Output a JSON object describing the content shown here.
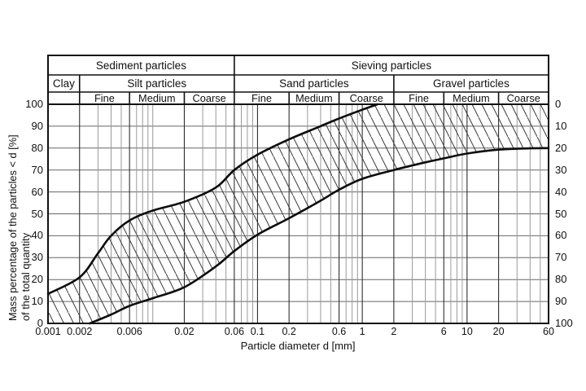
{
  "header": {
    "row1": [
      {
        "label": "Sediment particles",
        "from": 0.001,
        "to": 0.06
      },
      {
        "label": "Sieving particles",
        "from": 0.06,
        "to": 60
      }
    ],
    "row2": [
      {
        "label": "Clay",
        "from": 0.001,
        "to": 0.002
      },
      {
        "label": "Silt particles",
        "from": 0.002,
        "to": 0.06
      },
      {
        "label": "Sand particles",
        "from": 0.06,
        "to": 2
      },
      {
        "label": "Gravel particles",
        "from": 2,
        "to": 60
      }
    ],
    "row3": [
      {
        "label": "",
        "from": 0.001,
        "to": 0.002
      },
      {
        "label": "Fine",
        "from": 0.002,
        "to": 0.006
      },
      {
        "label": "Medium",
        "from": 0.006,
        "to": 0.02
      },
      {
        "label": "Coarse",
        "from": 0.02,
        "to": 0.06
      },
      {
        "label": "Fine",
        "from": 0.06,
        "to": 0.2
      },
      {
        "label": "Medium",
        "from": 0.2,
        "to": 0.6
      },
      {
        "label": "Coarse",
        "from": 0.6,
        "to": 2
      },
      {
        "label": "Fine",
        "from": 2,
        "to": 6
      },
      {
        "label": "Medium",
        "from": 6,
        "to": 20
      },
      {
        "label": "Coarse",
        "from": 20,
        "to": 60
      }
    ]
  },
  "axes": {
    "x": {
      "scale": "log",
      "min": 0.001,
      "max": 60,
      "title": "Particle diameter d [mm]",
      "ticks": [
        {
          "value": 0.001,
          "label": "0.001"
        },
        {
          "value": 0.002,
          "label": "0.002"
        },
        {
          "value": 0.006,
          "label": "0.006"
        },
        {
          "value": 0.02,
          "label": "0.02"
        },
        {
          "value": 0.06,
          "label": "0.06"
        },
        {
          "value": 0.1,
          "label": "0.1"
        },
        {
          "value": 0.2,
          "label": "0.2"
        },
        {
          "value": 0.6,
          "label": "0.6"
        },
        {
          "value": 1,
          "label": "1"
        },
        {
          "value": 2,
          "label": "2"
        },
        {
          "value": 6,
          "label": "6"
        },
        {
          "value": 10,
          "label": "10"
        },
        {
          "value": 20,
          "label": "20"
        },
        {
          "value": 60,
          "label": "60"
        }
      ]
    },
    "y_left": {
      "min": 0,
      "max": 100,
      "step": 10,
      "title_line1": "Mass percentage of the particles < d [%]",
      "title_line2": "of the total quantity",
      "labels": [
        "100",
        "90",
        "80",
        "70",
        "60",
        "50",
        "40",
        "30",
        "20",
        "10",
        "0"
      ]
    },
    "y_right": {
      "direction": "down",
      "labels": [
        "0",
        "10",
        "20",
        "30",
        "40",
        "50",
        "60",
        "70",
        "80",
        "90",
        "100"
      ]
    }
  },
  "chart_data": {
    "type": "area",
    "title": "",
    "xlabel": "Particle diameter d [mm]",
    "ylabel": "Mass percentage of the particles < d [%] of the total quantity",
    "x_scale": "log",
    "xlim_mm": [
      0.001,
      60
    ],
    "ylim_percent": [
      0,
      100
    ],
    "band_fill": "diagonal-hatch",
    "grid": "on",
    "series": [
      {
        "name": "upper envelope (finest grading curve)",
        "points_d_mm_vs_percent": [
          [
            0.001,
            13.5
          ],
          [
            0.002,
            21
          ],
          [
            0.003,
            32
          ],
          [
            0.004,
            40
          ],
          [
            0.006,
            47
          ],
          [
            0.01,
            51.5
          ],
          [
            0.02,
            55.5
          ],
          [
            0.04,
            62
          ],
          [
            0.06,
            70
          ],
          [
            0.1,
            77
          ],
          [
            0.2,
            84
          ],
          [
            0.4,
            90
          ],
          [
            0.6,
            93.5
          ],
          [
            1,
            97.5
          ],
          [
            1.4,
            100
          ],
          [
            60,
            100
          ]
        ]
      },
      {
        "name": "lower envelope (coarsest grading curve)",
        "points_d_mm_vs_percent": [
          [
            0.0025,
            0
          ],
          [
            0.004,
            4
          ],
          [
            0.006,
            8
          ],
          [
            0.01,
            11.5
          ],
          [
            0.02,
            16.5
          ],
          [
            0.04,
            26
          ],
          [
            0.06,
            33
          ],
          [
            0.1,
            40.5
          ],
          [
            0.2,
            48
          ],
          [
            0.4,
            56
          ],
          [
            0.6,
            61
          ],
          [
            1,
            66
          ],
          [
            2,
            70
          ],
          [
            4,
            73.5
          ],
          [
            6,
            75.3
          ],
          [
            10,
            77.5
          ],
          [
            20,
            79.3
          ],
          [
            40,
            79.9
          ],
          [
            60,
            80
          ]
        ]
      }
    ],
    "major_gridlines_mm": [
      0.001,
      0.002,
      0.006,
      0.02,
      0.06,
      0.1,
      0.2,
      0.6,
      1,
      2,
      6,
      10,
      20,
      60
    ],
    "minor_gridlines_mm": [
      0.003,
      0.004,
      0.005,
      0.007,
      0.008,
      0.009,
      0.01,
      0.03,
      0.04,
      0.05,
      0.07,
      0.08,
      0.09,
      0.3,
      0.4,
      0.5,
      0.7,
      0.8,
      0.9,
      3,
      4,
      5,
      7,
      8,
      9,
      30,
      40,
      50
    ]
  },
  "colors": {
    "background": "#ffffff",
    "border": "#111111",
    "grid_horizontal": "#666666",
    "grid_major_vertical": "#2f2f2f",
    "grid_minor_vertical": "#9a9a9a",
    "curve": "#0d0d0d",
    "hatch": "#3a3a3a",
    "text": "#111111"
  }
}
